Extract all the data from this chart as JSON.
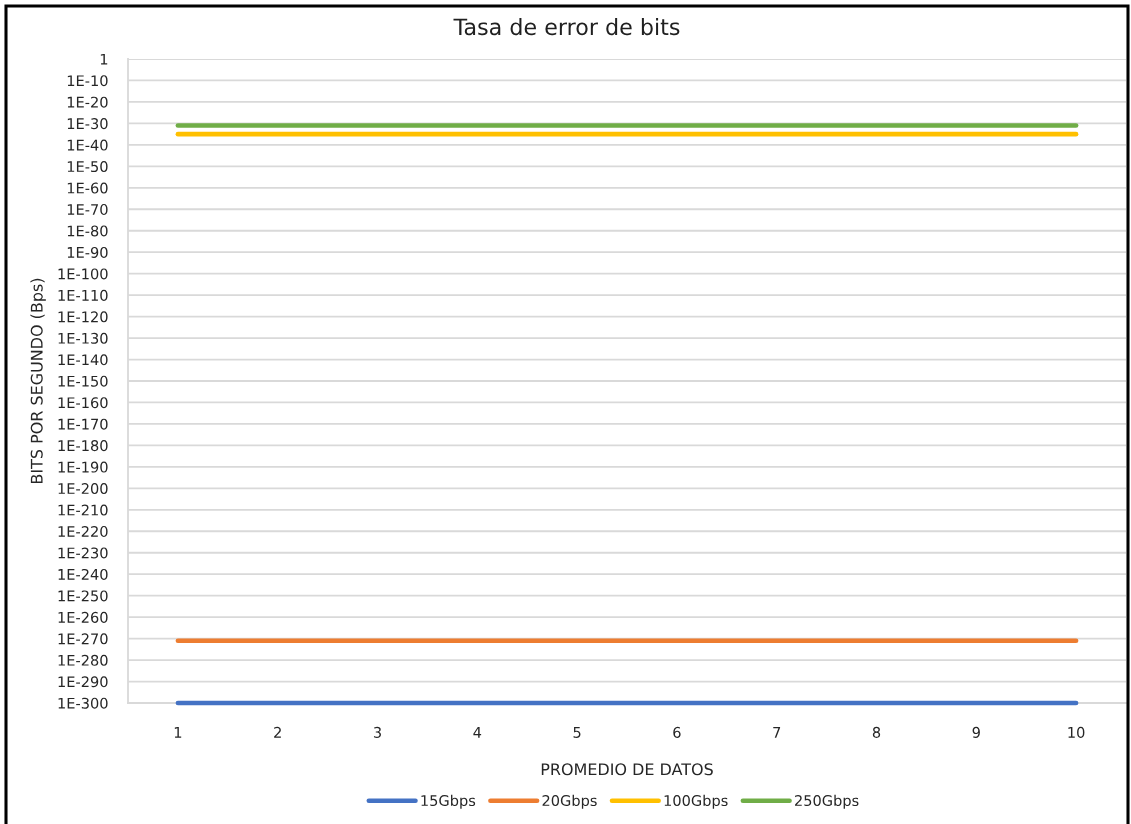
{
  "chart_data": {
    "type": "line",
    "title": "Tasa de error de bits",
    "xlabel": "PROMEDIO DE DATOS",
    "ylabel": "BITS POR SEGUNDO (Bps)",
    "categories": [
      "1",
      "2",
      "3",
      "4",
      "5",
      "6",
      "7",
      "8",
      "9",
      "10"
    ],
    "series": [
      {
        "name": "15Gbps",
        "color": "#4472c4",
        "values": [
          1e-300,
          1e-300,
          1e-300,
          1e-300,
          1e-300,
          1e-300,
          1e-300,
          1e-300,
          1e-300,
          1e-300
        ]
      },
      {
        "name": "20Gbps",
        "color": "#ed7d31",
        "values": [
          1e-271,
          1e-271,
          1e-271,
          1e-271,
          1e-271,
          1e-271,
          1e-271,
          1e-271,
          1e-271,
          1e-271
        ]
      },
      {
        "name": "100Gbps",
        "color": "#ffc000",
        "values": [
          1e-35,
          1e-35,
          1e-35,
          1e-35,
          1e-35,
          1e-35,
          1e-35,
          1e-35,
          1e-35,
          1e-35
        ]
      },
      {
        "name": "250Gbps",
        "color": "#70ad47",
        "values": [
          1e-31,
          1e-31,
          1e-31,
          1e-31,
          1e-31,
          1e-31,
          1e-31,
          1e-31,
          1e-31,
          1e-31
        ]
      }
    ],
    "log": true,
    "ylim": [
      1e-300,
      1
    ],
    "yticks": [
      1,
      {
        "value": 1e-10,
        "label": "1E-10"
      },
      {
        "value": 1e-20,
        "label": "1E-20"
      },
      {
        "value": 1e-30,
        "label": "1E-30"
      },
      {
        "value": 1e-40,
        "label": "1E-40"
      },
      {
        "value": 1e-50,
        "label": "1E-50"
      },
      {
        "value": 1e-60,
        "label": "1E-60"
      },
      {
        "value": 1e-70,
        "label": "1E-70"
      },
      {
        "value": 1e-80,
        "label": "1E-80"
      },
      {
        "value": 1e-90,
        "label": "1E-90"
      },
      {
        "value": 1e-100,
        "label": "1E-100"
      },
      {
        "value": 1e-110,
        "label": "1E-110"
      },
      {
        "value": 1e-120,
        "label": "1E-120"
      },
      {
        "value": 1e-130,
        "label": "1E-130"
      },
      {
        "value": 1e-140,
        "label": "1E-140"
      },
      {
        "value": 1e-150,
        "label": "1E-150"
      },
      {
        "value": 1e-160,
        "label": "1E-160"
      },
      {
        "value": 1e-170,
        "label": "1E-170"
      },
      {
        "value": 1e-180,
        "label": "1E-180"
      },
      {
        "value": 1e-190,
        "label": "1E-190"
      },
      {
        "value": 1e-200,
        "label": "1E-200"
      },
      {
        "value": 1e-210,
        "label": "1E-210"
      },
      {
        "value": 1e-220,
        "label": "1E-220"
      },
      {
        "value": 1e-230,
        "label": "1E-230"
      },
      {
        "value": 1e-240,
        "label": "1E-240"
      },
      {
        "value": 1e-250,
        "label": "1E-250"
      },
      {
        "value": 1e-260,
        "label": "1E-260"
      },
      {
        "value": 1e-270,
        "label": "1E-270"
      },
      {
        "value": 1e-280,
        "label": "1E-280"
      },
      {
        "value": 1e-290,
        "label": "1E-290"
      },
      {
        "value": 1e-300,
        "label": "1E-300"
      }
    ],
    "grid": "y",
    "legend": "bottom"
  }
}
